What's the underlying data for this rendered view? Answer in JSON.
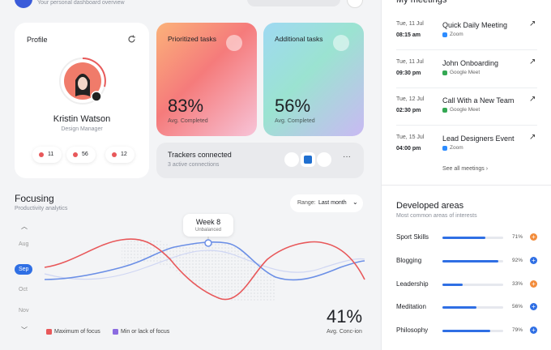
{
  "header": {
    "subtitle": "Your personal dashboard overview"
  },
  "profile": {
    "title": "Profile",
    "name": "Kristin Watson",
    "role": "Design Manager",
    "stats": [
      "11",
      "56",
      "12"
    ]
  },
  "prioritized": {
    "title": "Prioritized tasks",
    "value": "83%",
    "label": "Avg. Completed"
  },
  "additional": {
    "title": "Additional tasks",
    "value": "56%",
    "label": "Avg. Completed"
  },
  "trackers": {
    "title": "Trackers connected",
    "subtitle": "3 active connections"
  },
  "focusing": {
    "title": "Focusing",
    "subtitle": "Productivity analytics",
    "range_label": "Range:",
    "range_value": "Last month",
    "months": [
      "Aug",
      "Sep",
      "Oct",
      "Nov"
    ],
    "tooltip_title": "Week 8",
    "tooltip_subtitle": "Unbalanced",
    "legend": [
      "Maximum of focus",
      "Min or lack of focus"
    ],
    "value": "41%",
    "value_label": "Avg. Conc-ion"
  },
  "meetings": {
    "items": [
      {
        "date": "Tue, 11 Jul",
        "time": "08:15 am",
        "title": "Quick Daily Meeting",
        "platform": "Zoom"
      },
      {
        "date": "Tue, 11 Jul",
        "time": "09:30 pm",
        "title": "John Onboarding",
        "platform": "Google Meet"
      },
      {
        "date": "Tue, 12 Jul",
        "time": "02:30 pm",
        "title": "Call With a New Team",
        "platform": "Google Meet"
      },
      {
        "date": "Tue, 15 Jul",
        "time": "04:00 pm",
        "title": "Lead Designers Event",
        "platform": "Zoom"
      }
    ],
    "see_all": "See all meetings"
  },
  "areas": {
    "title": "Developed areas",
    "subtitle": "Most common areas of interests",
    "items": [
      {
        "name": "Sport Skills",
        "value": 71,
        "label": "71%"
      },
      {
        "name": "Blogging",
        "value": 92,
        "label": "92%"
      },
      {
        "name": "Leadership",
        "value": 33,
        "label": "33%"
      },
      {
        "name": "Meditation",
        "value": 56,
        "label": "56%"
      },
      {
        "name": "Philosophy",
        "value": 79,
        "label": "79%"
      }
    ]
  }
}
